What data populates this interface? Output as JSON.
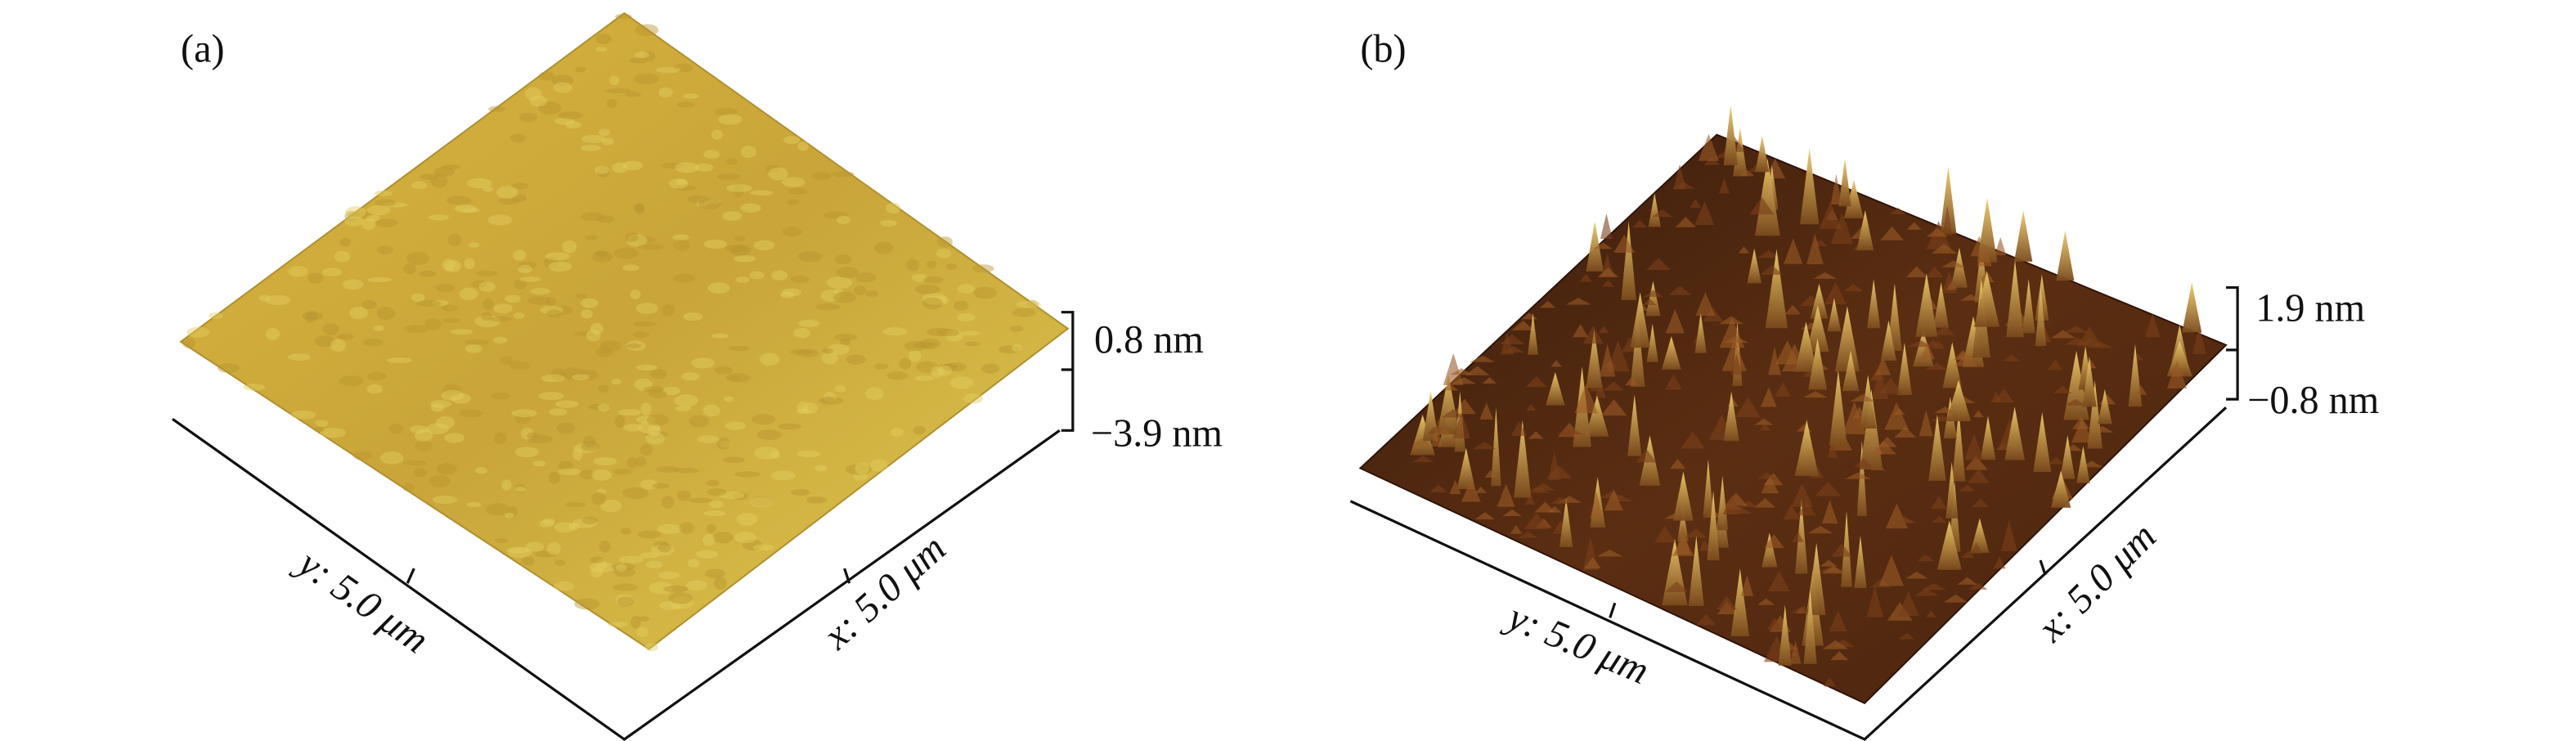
{
  "panels": [
    {
      "label": "(a)",
      "z_top": "0.8 nm",
      "z_bottom": "−3.9 nm",
      "y_axis": "y: 5.0 μm",
      "x_axis": "x: 5.0 μm"
    },
    {
      "label": "(b)",
      "z_top": "1.9 nm",
      "z_bottom": "−0.8 nm",
      "y_axis": "y: 5.0 μm",
      "x_axis": "x: 5.0 μm"
    }
  ]
}
